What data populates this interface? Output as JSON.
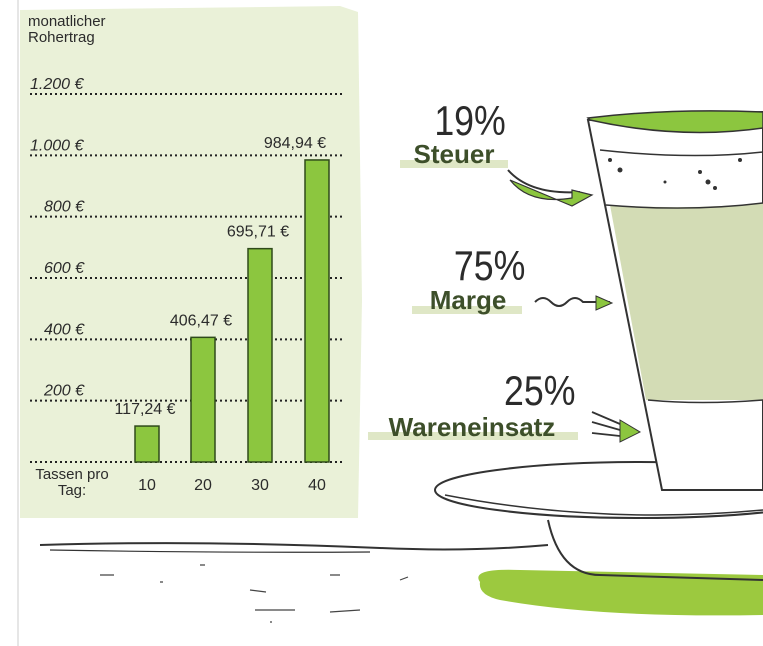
{
  "chart_data": {
    "type": "bar",
    "y_axis_label": "monatlicher Rohertrag",
    "x_axis_label": "Tassen pro Tag:",
    "categories": [
      "10",
      "20",
      "30",
      "40"
    ],
    "values": [
      117.24,
      406.47,
      695.71,
      984.94
    ],
    "value_labels": [
      "117,24 €",
      "406,47 €",
      "695,71 €",
      "984,94 €"
    ],
    "color": "#8cc63f",
    "ylim": [
      0,
      1200
    ],
    "yticks": [
      {
        "value": 200,
        "label": "200 €"
      },
      {
        "value": 400,
        "label": "400 €"
      },
      {
        "value": 600,
        "label": "600 €"
      },
      {
        "value": 800,
        "label": "800 €"
      },
      {
        "value": 1000,
        "label": "1.000 €"
      },
      {
        "value": 1200,
        "label": "1.200 €"
      }
    ],
    "grid": true
  },
  "illustration": {
    "items": [
      {
        "percent": "19%",
        "label": "Steuer"
      },
      {
        "percent": "75%",
        "label": "Marge"
      },
      {
        "percent": "25%",
        "label": "Wareneinsatz"
      }
    ]
  }
}
